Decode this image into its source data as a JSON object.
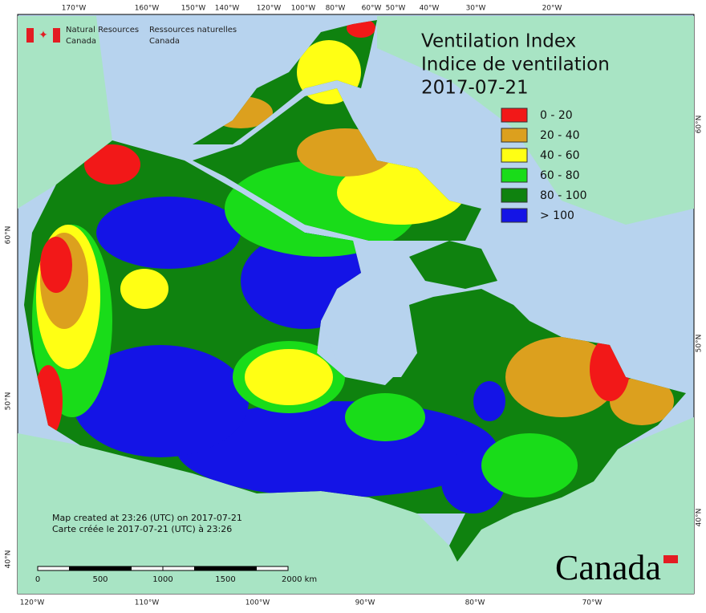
{
  "header": {
    "agency_en": [
      "Natural Resources",
      "Canada"
    ],
    "agency_fr": [
      "Ressources naturelles",
      "Canada"
    ]
  },
  "title": {
    "lines": [
      "Ventilation Index",
      "Indice de ventilation",
      "2017-07-21"
    ]
  },
  "legend": {
    "items": [
      {
        "label": "0 - 20",
        "color": "#f21818"
      },
      {
        "label": "20 - 40",
        "color": "#dca01e"
      },
      {
        "label": "40 - 60",
        "color": "#ffff14"
      },
      {
        "label": "60 - 80",
        "color": "#19dc19"
      },
      {
        "label": "80 - 100",
        "color": "#0f820f"
      },
      {
        "label": "> 100",
        "color": "#1414e6"
      }
    ]
  },
  "graticule": {
    "top": [
      "170°W",
      "160°W",
      "150°W",
      "140°W",
      "120°W",
      "100°W",
      "80°W",
      "60°W",
      "50°W",
      "40°W",
      "30°W",
      "20°W"
    ],
    "bottom": [
      "120°W",
      "110°W",
      "100°W",
      "90°W",
      "80°W",
      "70°W"
    ],
    "left": [
      "60°N",
      "50°N",
      "40°N"
    ],
    "right": [
      "60°N",
      "50°N",
      "40°N"
    ]
  },
  "footer": {
    "lines": [
      "Map created at 23:26 (UTC) on 2017-07-21",
      "Carte créée le 2017-07-21 (UTC) à 23:26"
    ]
  },
  "scale_bar": {
    "labels": [
      "0",
      "500",
      "1000",
      "1500",
      "2000 km"
    ]
  },
  "wordmark": "Canada"
}
